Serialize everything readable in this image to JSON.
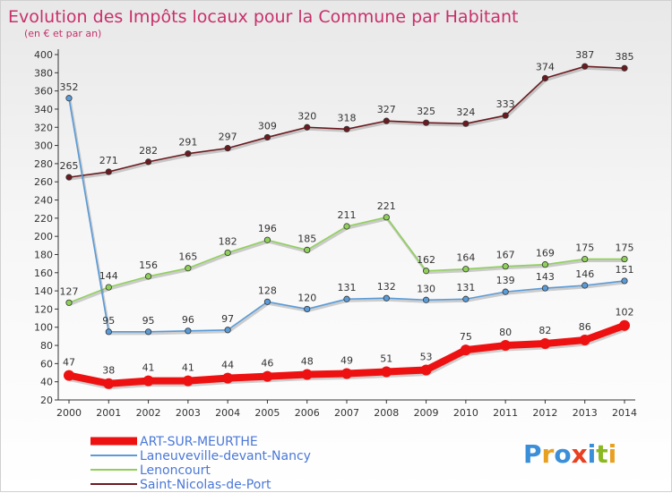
{
  "chart_data": {
    "type": "line",
    "title": "Evolution des Impôts locaux pour la Commune par Habitant",
    "subtitle": "(en € et par an)",
    "x": [
      "2000",
      "2001",
      "2002",
      "2003",
      "2004",
      "2005",
      "2006",
      "2007",
      "2008",
      "2009",
      "2010",
      "2011",
      "2012",
      "2013",
      "2014"
    ],
    "ylim": [
      20,
      400
    ],
    "yticks": [
      20,
      40,
      60,
      80,
      100,
      120,
      140,
      160,
      180,
      200,
      220,
      240,
      260,
      280,
      300,
      320,
      340,
      360,
      380,
      400
    ],
    "grid": false,
    "legend_position": "bottom-left",
    "series": [
      {
        "name": "Saint-Nicolas-de-Port",
        "color": "#6b1a1f",
        "values": [
          265,
          271,
          282,
          291,
          297,
          309,
          320,
          318,
          327,
          325,
          324,
          333,
          374,
          387,
          385
        ]
      },
      {
        "name": "Lenoncourt",
        "color": "#8fd05a",
        "values": [
          127,
          144,
          156,
          165,
          182,
          196,
          185,
          211,
          221,
          162,
          164,
          167,
          169,
          175,
          175
        ]
      },
      {
        "name": "Laneuveville-devant-Nancy",
        "color": "#5a9bd8",
        "values": [
          352,
          95,
          95,
          96,
          97,
          128,
          120,
          131,
          132,
          130,
          131,
          139,
          143,
          146,
          151
        ]
      },
      {
        "name": "ART-SUR-MEURTHE",
        "color": "#ee1111",
        "values": [
          47,
          38,
          41,
          41,
          44,
          46,
          48,
          49,
          51,
          53,
          75,
          80,
          82,
          86,
          102
        ]
      }
    ],
    "legend_order": [
      "ART-SUR-MEURTHE",
      "Laneuveville-devant-Nancy",
      "Lenoncourt",
      "Saint-Nicolas-de-Port"
    ]
  },
  "logo": {
    "text": "Proxiti",
    "colors": [
      "#3a8fd8",
      "#e8a020",
      "#3a8fd8",
      "#e84020",
      "#3a8fd8",
      "#8ab820",
      "#e8a020"
    ]
  }
}
